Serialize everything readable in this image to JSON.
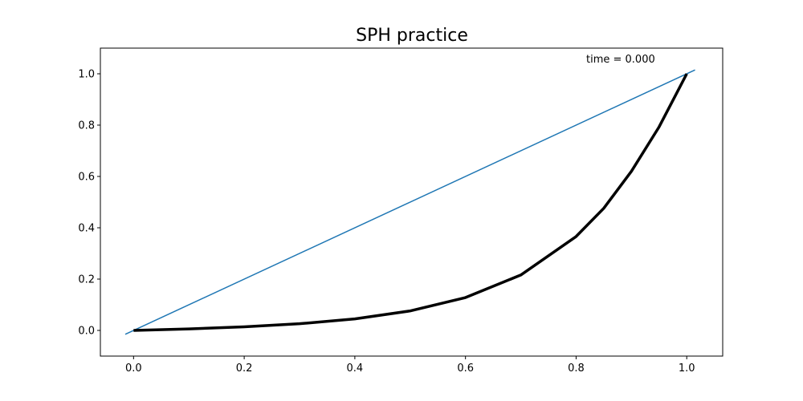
{
  "chart_data": {
    "type": "line",
    "title": "SPH practice",
    "xlabel": "",
    "ylabel": "",
    "xlim": [
      -0.06,
      1.065
    ],
    "ylim": [
      -0.1,
      1.1
    ],
    "xticks": [
      0.0,
      0.2,
      0.4,
      0.6,
      0.8,
      1.0
    ],
    "xtick_labels": [
      "0.0",
      "0.2",
      "0.4",
      "0.6",
      "0.8",
      "1.0"
    ],
    "yticks": [
      0.0,
      0.2,
      0.4,
      0.6,
      0.8,
      1.0
    ],
    "ytick_labels": [
      "0.0",
      "0.2",
      "0.4",
      "0.6",
      "0.8",
      "1.0"
    ],
    "grid": false,
    "annotation": "time = 0.000",
    "series": [
      {
        "color": "#1f77b4",
        "linewidth": 1.5,
        "x": [
          -0.015,
          1.015
        ],
        "y": [
          -0.015,
          1.015
        ]
      },
      {
        "color": "#000000",
        "linewidth": 3.5,
        "x": [
          0.0,
          0.1,
          0.2,
          0.3,
          0.4,
          0.5,
          0.6,
          0.7,
          0.8,
          0.85,
          0.9,
          0.95,
          1.0
        ],
        "y": [
          0.0,
          0.006,
          0.014,
          0.026,
          0.045,
          0.076,
          0.128,
          0.216,
          0.366,
          0.476,
          0.62,
          0.793,
          1.0
        ]
      }
    ]
  }
}
